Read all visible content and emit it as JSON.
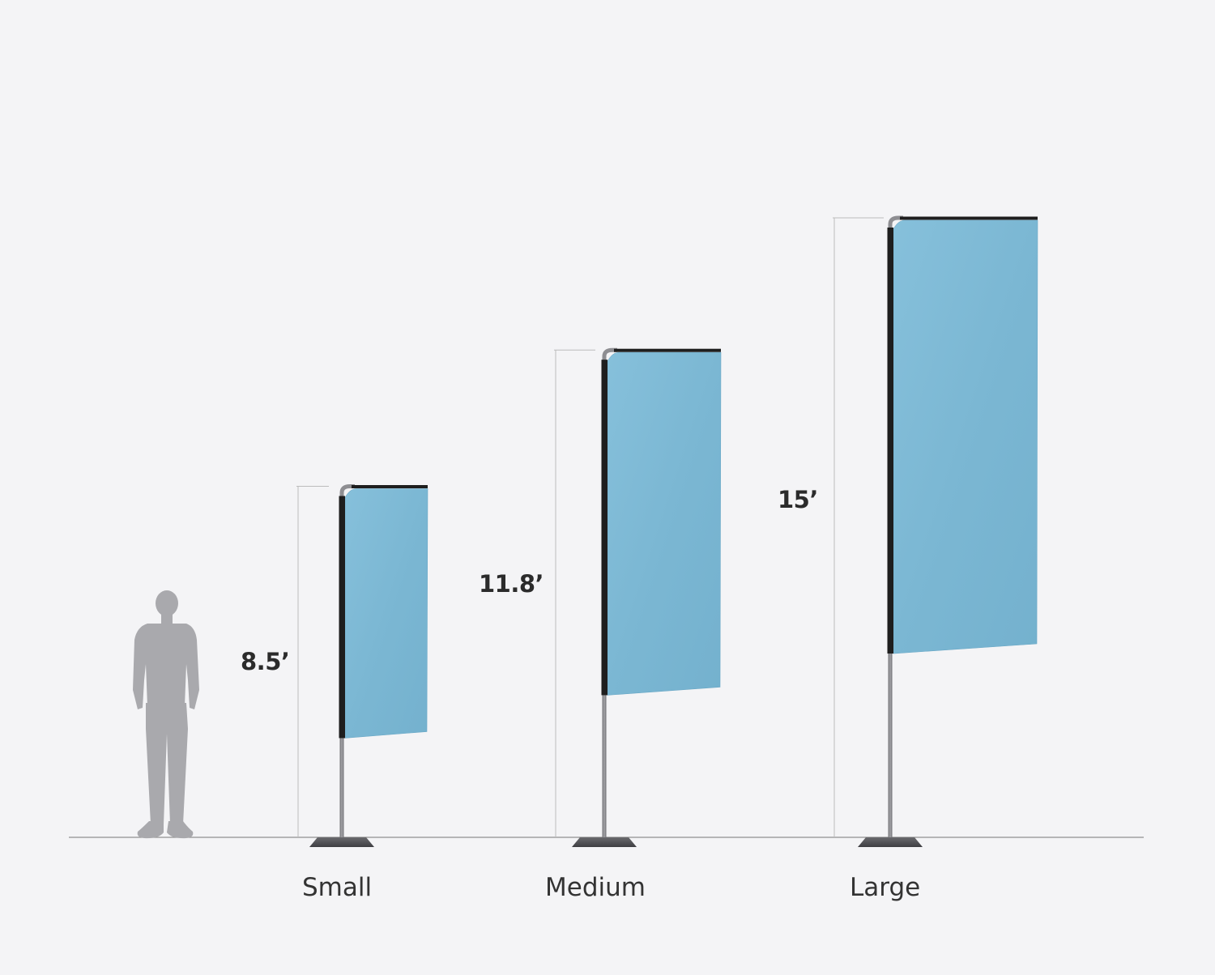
{
  "colors": {
    "background": "#f4f4f6",
    "flag": "#7ebad6",
    "flag_edge": "#6aa8c6",
    "pole": "#8a8a8e",
    "sleeve": "#1e1e1e",
    "base": "#5a5a5e",
    "person": "#a9a9ad",
    "guide_line": "#bcbcbc",
    "ground": "#9a9a9a"
  },
  "person": {
    "icon": "person-silhouette-icon"
  },
  "flags": [
    {
      "id": "small",
      "size_label": "Small",
      "height_label": "8.5’",
      "height_ft": 8.5
    },
    {
      "id": "medium",
      "size_label": "Medium",
      "height_label": "11.8’",
      "height_ft": 11.8
    },
    {
      "id": "large",
      "size_label": "Large",
      "height_label": "15’",
      "height_ft": 15
    }
  ]
}
